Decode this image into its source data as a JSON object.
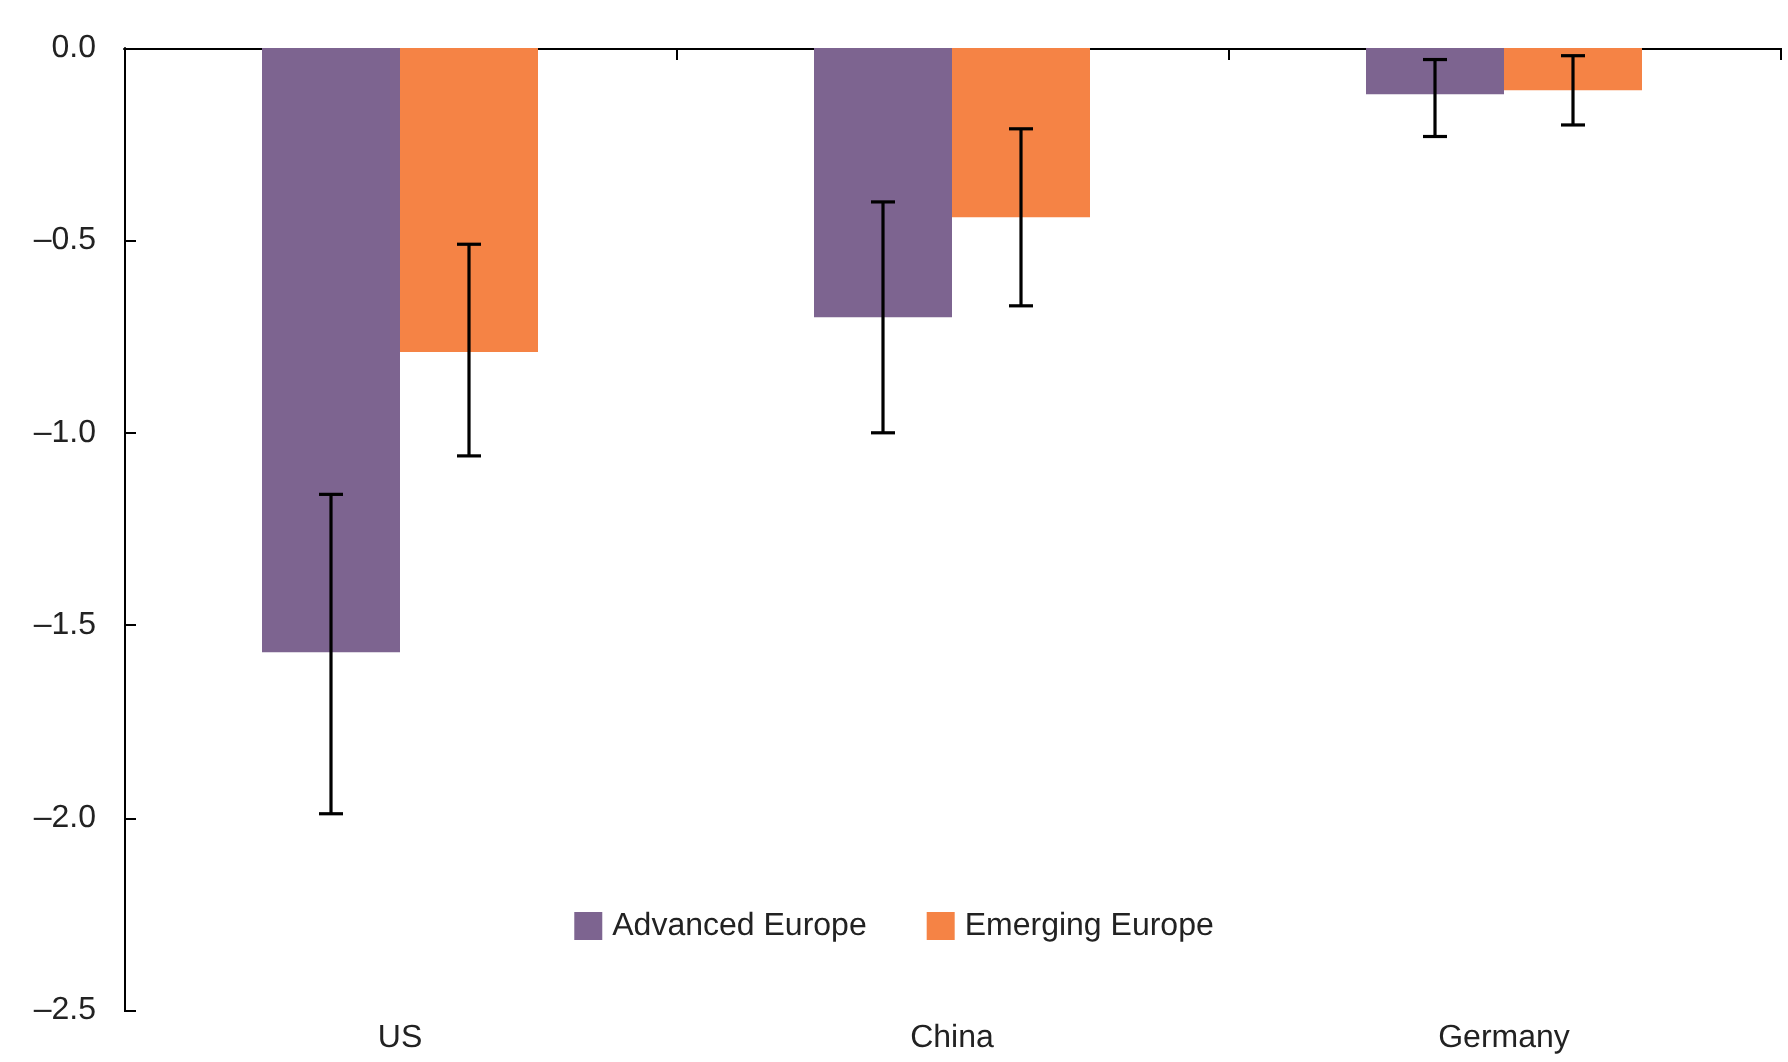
{
  "chart_data": {
    "type": "bar",
    "categories": [
      "US",
      "China",
      "Germany"
    ],
    "series": [
      {
        "name": "Advanced Europe",
        "color": "#7d6490",
        "values": [
          -1.57,
          -0.7,
          -0.12
        ],
        "errors": [
          [
            -1.99,
            -1.16
          ],
          [
            -1.0,
            -0.4
          ],
          [
            -0.23,
            -0.03
          ]
        ]
      },
      {
        "name": "Emerging Europe",
        "color": "#f58345",
        "values": [
          -0.79,
          -0.44,
          -0.11
        ],
        "errors": [
          [
            -1.06,
            -0.51
          ],
          [
            -0.67,
            -0.21
          ],
          [
            -0.2,
            -0.02
          ]
        ]
      }
    ],
    "ylim": [
      -2.5,
      0.0
    ],
    "yticks": [
      {
        "value": -2.5,
        "label": "–2.5"
      },
      {
        "value": -2.0,
        "label": "–2.0"
      },
      {
        "value": -1.5,
        "label": "–1.5"
      },
      {
        "value": -1.0,
        "label": "–1.0"
      },
      {
        "value": -0.5,
        "label": "–0.5"
      },
      {
        "value": 0.0,
        "label": "0.0"
      }
    ],
    "grid": false,
    "legend": "bottom"
  }
}
